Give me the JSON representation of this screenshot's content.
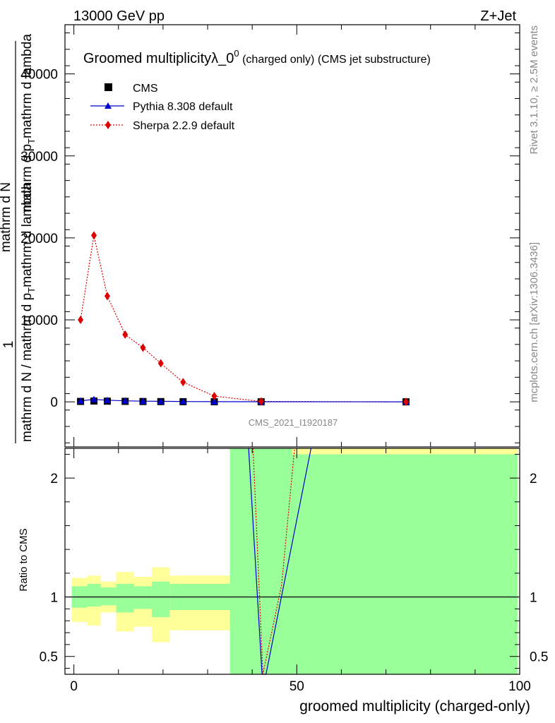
{
  "header": {
    "left": "13000 GeV pp",
    "right": "Z+Jet"
  },
  "side": {
    "upper": "Rivet 3.1.10, ≥ 2.5M events",
    "lower": "mcplots.cern.ch [arXiv:1306.3436]"
  },
  "chart_data": [
    {
      "type": "scatter",
      "title": "Groomed multiplicityλ_0",
      "title_sup": "0",
      "title_suffix": " (charged only) (CMS jet substructure)",
      "ylabel": {
        "prefix": "1",
        "numerator": "mathrm d N / mathrm d p",
        "num_sub": "T",
        "num_tail": "mathrm d lambda",
        "denom1": "mathrm d N",
        "denom2": "mathrm d p",
        "denom_sub": "T",
        "denom_tail": "mathrm d lambda"
      },
      "xlim": [
        -2,
        100
      ],
      "ylim": [
        -5500,
        46000
      ],
      "yticks": [
        0,
        10000,
        20000,
        30000,
        40000
      ],
      "ytick_labels": [
        "0",
        "10000",
        "20000",
        "30000",
        "40000"
      ],
      "watermark": "CMS_2021_I1920187",
      "legend": {
        "position": "top-left"
      },
      "series": [
        {
          "name": "CMS",
          "x": [
            1.5,
            4.5,
            7.5,
            11.5,
            15.5,
            19.5,
            24.5,
            31.5,
            42,
            74.5
          ],
          "y": [
            50,
            100,
            80,
            60,
            40,
            30,
            20,
            10,
            5,
            1
          ],
          "color": "#000000",
          "marker": "square"
        },
        {
          "name": "Pythia 8.308 default",
          "x": [
            1.5,
            4.5,
            7.5,
            11.5,
            15.5,
            19.5,
            24.5,
            31.5,
            42,
            74.5
          ],
          "y": [
            120,
            300,
            200,
            120,
            80,
            60,
            40,
            20,
            8,
            1
          ],
          "color": "#0000cc",
          "marker": "triangle",
          "line": "solid"
        },
        {
          "name": "Sherpa 2.2.9 default",
          "x": [
            1.5,
            4.5,
            7.5,
            11.5,
            15.5,
            19.5,
            24.5,
            31.5,
            42,
            74.5
          ],
          "y": [
            10000,
            20300,
            12900,
            8200,
            6600,
            4700,
            2400,
            700,
            50,
            1
          ],
          "color": "#dd0000",
          "marker": "diamond",
          "line": "dotted"
        }
      ]
    },
    {
      "type": "line",
      "ylabel": "Ratio to CMS",
      "xlabel": "groomed multiplicity (charged-only)",
      "xlim": [
        -2,
        100
      ],
      "ylim": [
        0.35,
        2.25
      ],
      "xticks": [
        0,
        50,
        100
      ],
      "xtick_labels": [
        "0",
        "50",
        "100"
      ],
      "yticks": [
        0.5,
        1,
        2
      ],
      "ytick_labels": [
        "0.5",
        "1",
        "2"
      ],
      "bands": [
        {
          "x0": -0.5,
          "x1": 3,
          "stat_lo": 0.91,
          "stat_hi": 1.09,
          "tot_lo": 0.79,
          "tot_hi": 1.16
        },
        {
          "x0": 3,
          "x1": 6,
          "stat_lo": 0.92,
          "stat_hi": 1.11,
          "tot_lo": 0.76,
          "tot_hi": 1.18
        },
        {
          "x0": 6,
          "x1": 9.5,
          "stat_lo": 0.93,
          "stat_hi": 1.08,
          "tot_lo": 0.87,
          "tot_hi": 1.13
        },
        {
          "x0": 9.5,
          "x1": 13.5,
          "stat_lo": 0.87,
          "stat_hi": 1.11,
          "tot_lo": 0.71,
          "tot_hi": 1.21
        },
        {
          "x0": 13.5,
          "x1": 17.5,
          "stat_lo": 0.9,
          "stat_hi": 1.09,
          "tot_lo": 0.75,
          "tot_hi": 1.17
        },
        {
          "x0": 17.5,
          "x1": 21.5,
          "stat_lo": 0.83,
          "stat_hi": 1.13,
          "tot_lo": 0.62,
          "tot_hi": 1.25
        },
        {
          "x0": 21.5,
          "x1": 35,
          "stat_lo": 0.89,
          "stat_hi": 1.11,
          "tot_lo": 0.72,
          "tot_hi": 1.18
        },
        {
          "x0": 35,
          "x1": 49,
          "stat_lo": 0.3,
          "stat_hi": 2.4,
          "tot_lo": 0.3,
          "tot_hi": 2.4
        },
        {
          "x0": 49,
          "x1": 99.5,
          "stat_lo": 0.3,
          "stat_hi": 2.2,
          "tot_lo": 0.3,
          "tot_hi": 2.4
        }
      ],
      "series": [
        {
          "name": "Pythia 8.308 default",
          "x": [
            39.2,
            42.2,
            43.1,
            53.2
          ],
          "y": [
            2.25,
            0.35,
            0.35,
            2.25
          ],
          "color": "#0000cc",
          "line": "solid"
        },
        {
          "name": "Sherpa 2.2.9 default",
          "x": [
            40.2,
            42.4,
            46.6,
            49.5
          ],
          "y": [
            2.25,
            0.35,
            1.1,
            2.25
          ],
          "color": "#dd0000",
          "line": "dotted"
        }
      ]
    }
  ]
}
